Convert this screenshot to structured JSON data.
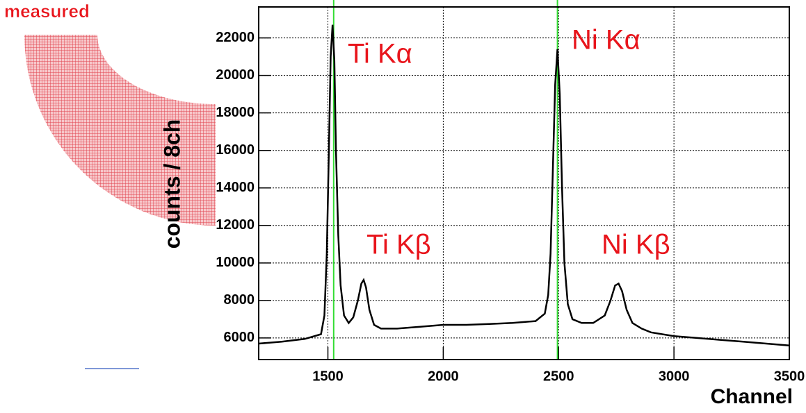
{
  "chart_data": {
    "type": "line",
    "caption": "measured",
    "x_label": "Channel",
    "y_label": "counts / 8ch",
    "x": [
      1200,
      1300,
      1400,
      1470,
      1485,
      1495,
      1505,
      1512,
      1520,
      1528,
      1535,
      1545,
      1555,
      1570,
      1590,
      1610,
      1630,
      1645,
      1655,
      1665,
      1680,
      1700,
      1730,
      1800,
      1900,
      2000,
      2100,
      2200,
      2300,
      2400,
      2440,
      2455,
      2465,
      2475,
      2485,
      2495,
      2505,
      2515,
      2525,
      2540,
      2560,
      2600,
      2650,
      2700,
      2725,
      2745,
      2760,
      2775,
      2795,
      2820,
      2860,
      2900,
      3000,
      3100,
      3200,
      3300,
      3400,
      3500
    ],
    "series": [
      {
        "color": "#000000",
        "values": [
          5700,
          5800,
          5950,
          6200,
          7200,
          10500,
          16500,
          21000,
          22700,
          20800,
          16000,
          11500,
          8800,
          7200,
          6800,
          7100,
          8000,
          8900,
          9100,
          8700,
          7500,
          6700,
          6500,
          6500,
          6600,
          6700,
          6700,
          6750,
          6800,
          6900,
          7300,
          8300,
          10500,
          15000,
          19500,
          21400,
          19000,
          14000,
          10000,
          7800,
          7000,
          6800,
          6800,
          7200,
          8000,
          8800,
          8900,
          8500,
          7500,
          6800,
          6500,
          6300,
          6100,
          6000,
          5900,
          5800,
          5700,
          5600
        ]
      }
    ],
    "xlim": [
      1200,
      3500
    ],
    "ylim": [
      4850,
      23650
    ],
    "xticks": [
      1500,
      2000,
      2500,
      3000,
      3500
    ],
    "yticks": [
      6000,
      8000,
      10000,
      12000,
      14000,
      16000,
      18000,
      20000,
      22000
    ],
    "grid": true,
    "reference_lines": [
      {
        "value": 1525,
        "color": "#33dd33"
      },
      {
        "value": 2495,
        "color": "#33dd33"
      }
    ],
    "annotations": [
      "Ti Kα",
      "Ni Kα",
      "Ti Kβ",
      "Ni Kβ"
    ]
  }
}
